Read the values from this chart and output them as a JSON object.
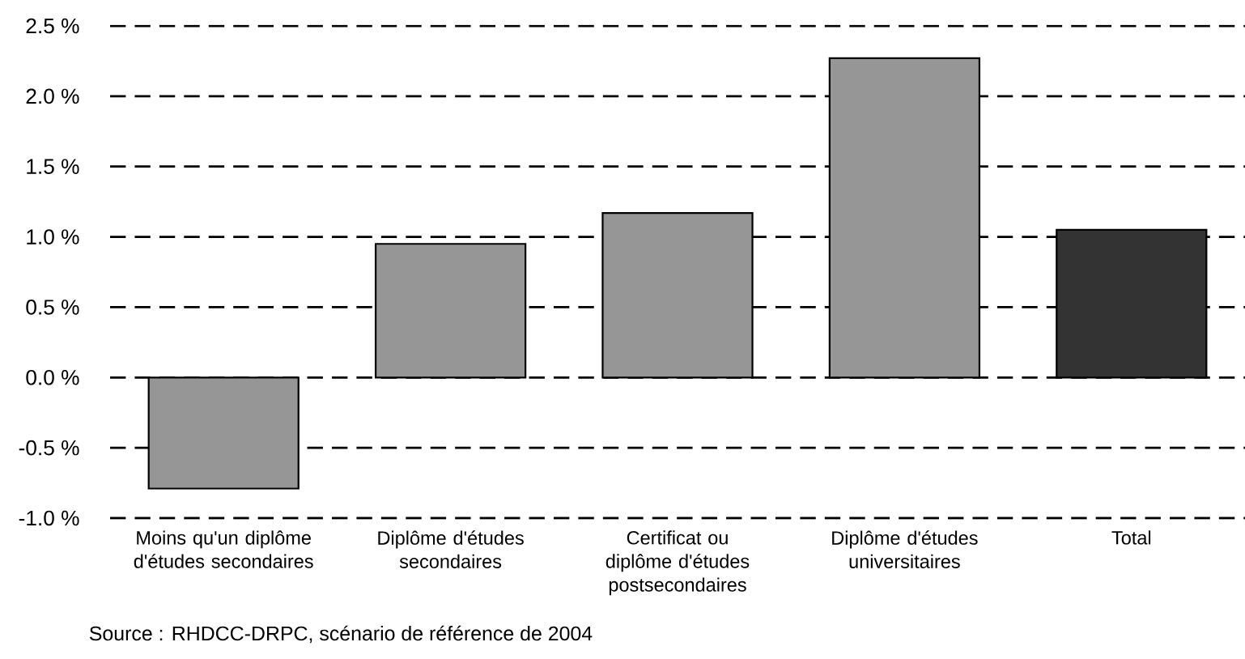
{
  "chart_data": {
    "type": "bar",
    "categories": [
      "Moins qu'un diplôme d'études secondaires",
      "Diplôme d'études secondaires",
      "Certificat ou diplôme d'études postsecondaires",
      "Diplôme d'études universitaires",
      "Total"
    ],
    "values": [
      -0.79,
      0.95,
      1.17,
      2.27,
      1.05
    ],
    "colors": [
      "#969696",
      "#969696",
      "#969696",
      "#969696",
      "#333333"
    ],
    "ylim": [
      -1.0,
      2.5
    ],
    "yticks": [
      {
        "value": -1.0,
        "label": "-1.0 %"
      },
      {
        "value": -0.5,
        "label": "-0.5 %"
      },
      {
        "value": 0.0,
        "label": "0.0 %"
      },
      {
        "value": 0.5,
        "label": "0.5 %"
      },
      {
        "value": 1.0,
        "label": "1.0 %"
      },
      {
        "value": 1.5,
        "label": "1.5 %"
      },
      {
        "value": 2.0,
        "label": "2.0 %"
      },
      {
        "value": 2.5,
        "label": "2.5 %"
      }
    ],
    "grid": "y",
    "annotations": [
      "Source : RHDCC-DRPC, scénario de référence de 2004"
    ]
  }
}
